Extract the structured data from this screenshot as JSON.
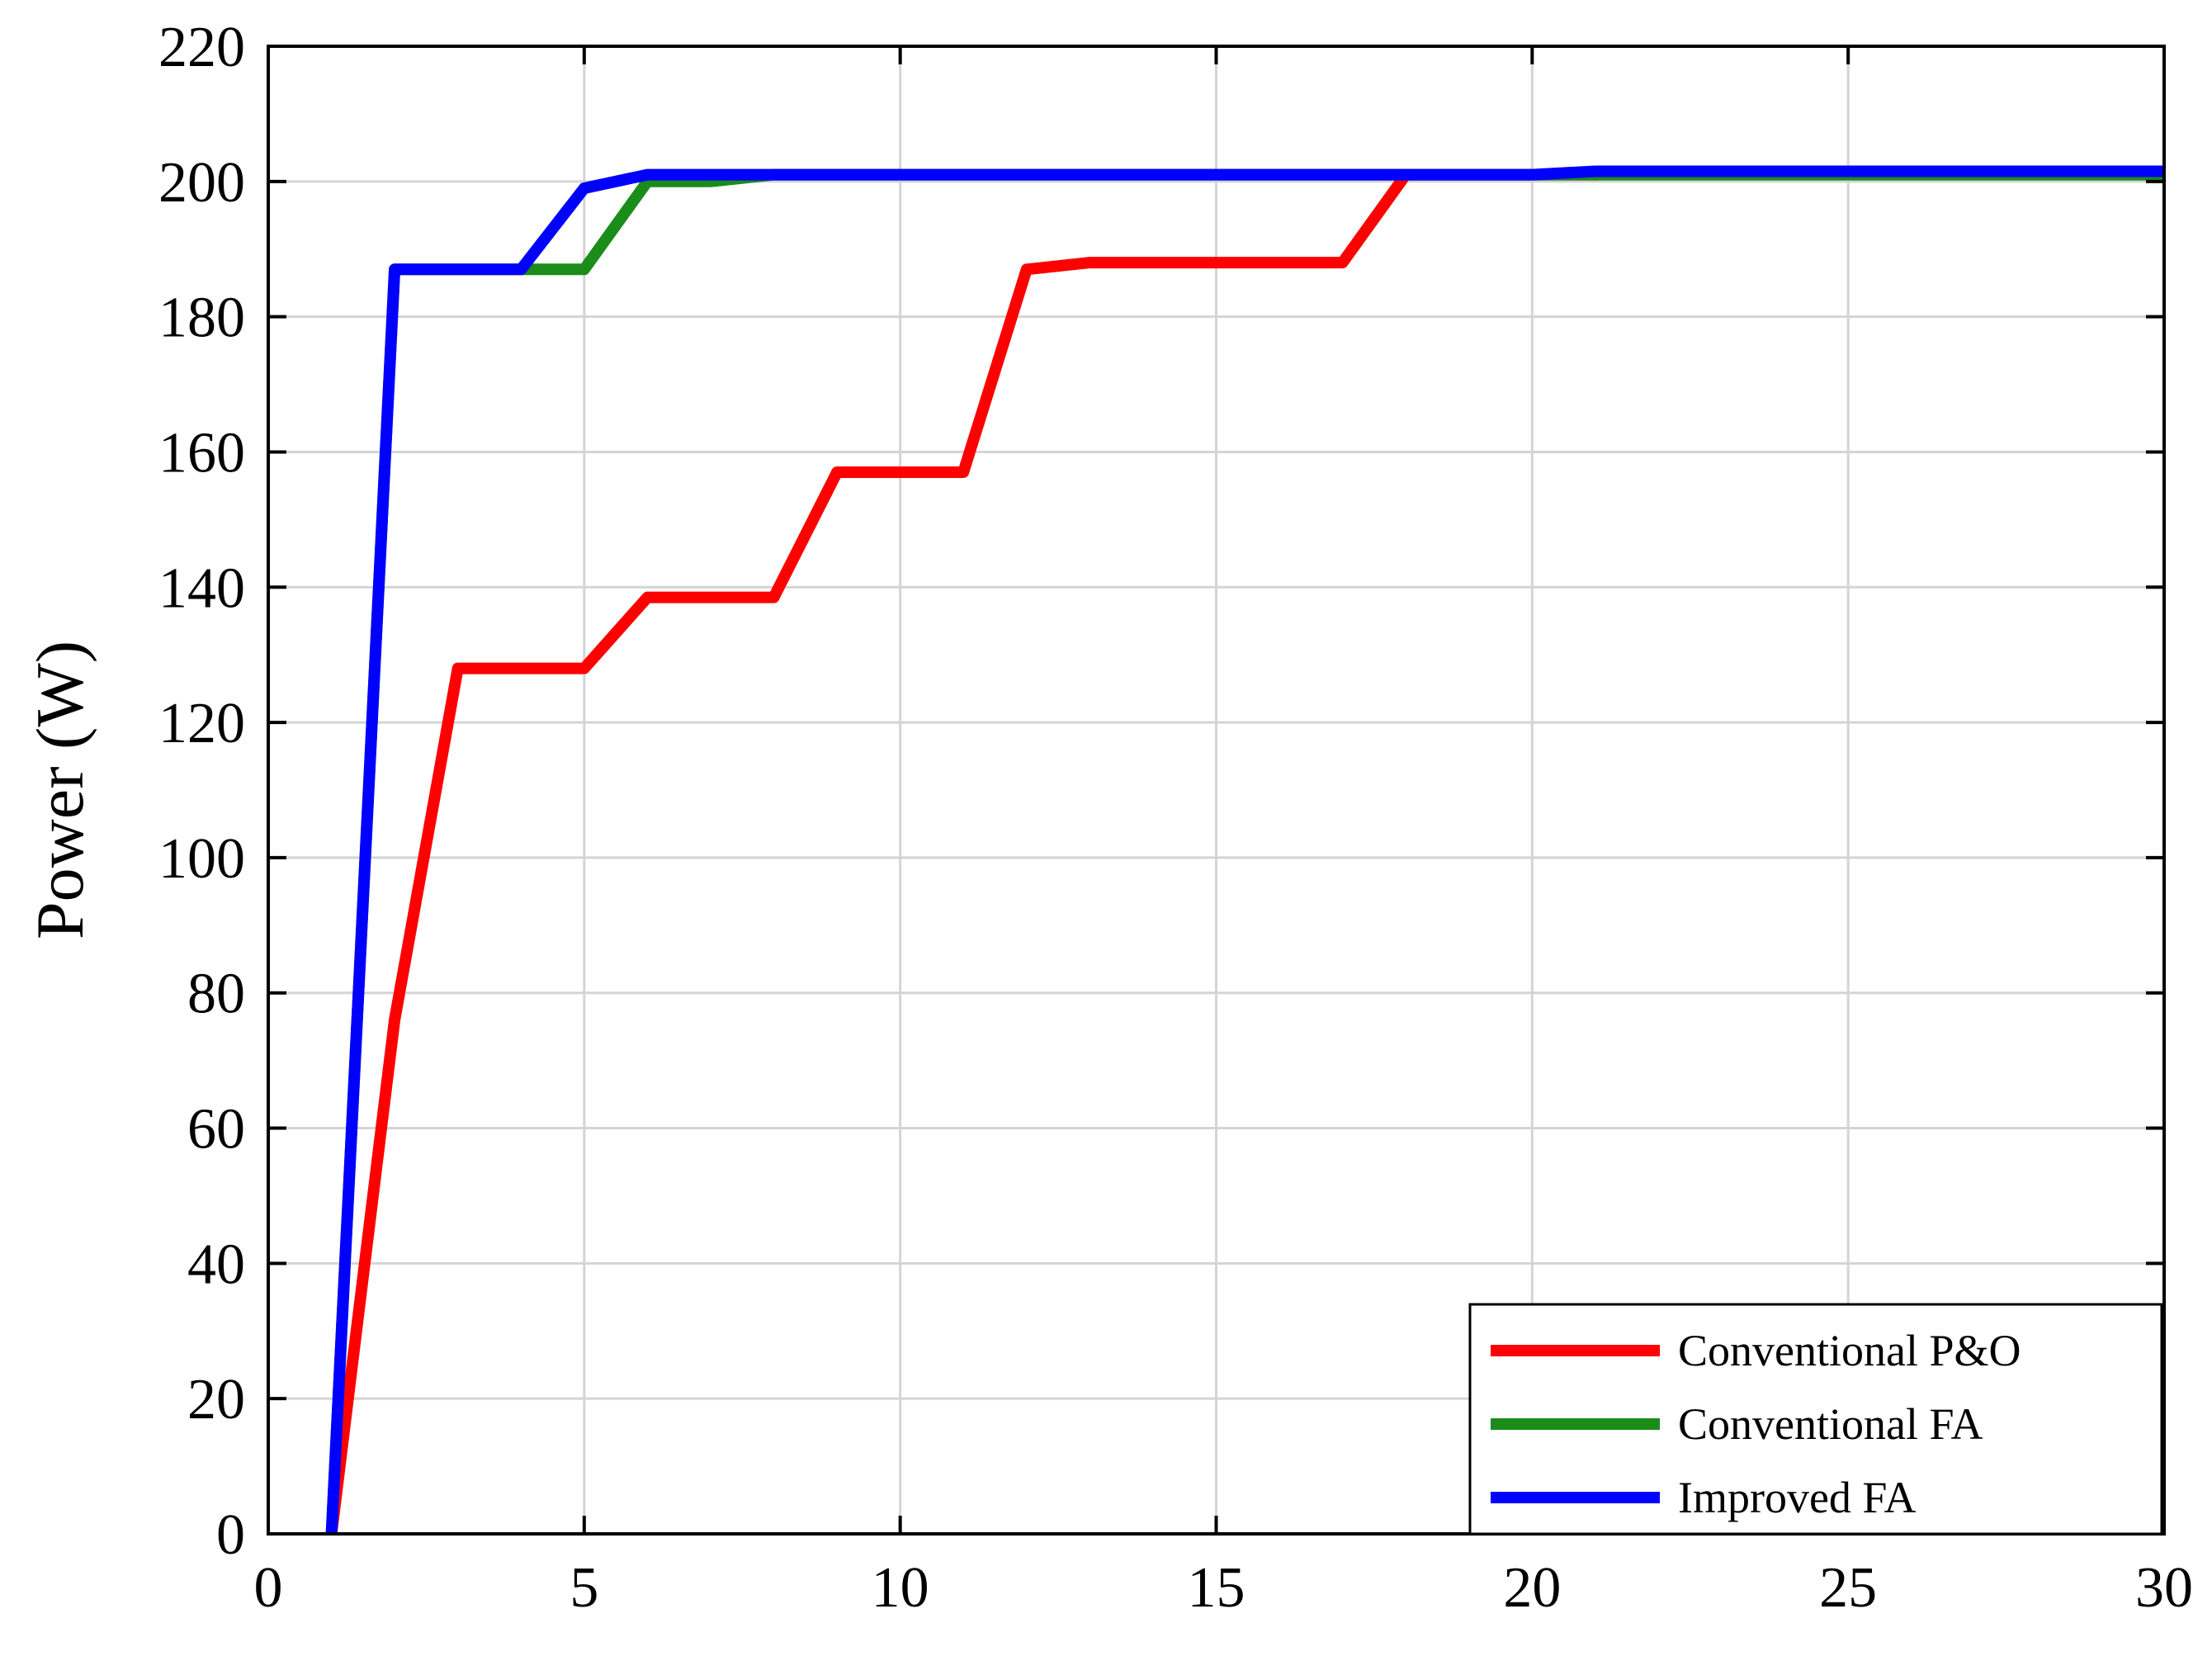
{
  "chart_data": {
    "type": "line",
    "title": "",
    "xlabel": "",
    "ylabel": "Power (W)",
    "xlim": [
      0,
      30
    ],
    "ylim": [
      0,
      220
    ],
    "xticks": [
      0,
      5,
      10,
      15,
      20,
      25,
      30
    ],
    "yticks": [
      0,
      20,
      40,
      60,
      80,
      100,
      120,
      140,
      160,
      180,
      200,
      220
    ],
    "grid": true,
    "legend_position": "bottom-right",
    "series": [
      {
        "name": "Conventional P&O",
        "color": "#ff0000",
        "x": [
          1,
          2,
          3,
          4,
          5,
          6,
          7,
          8,
          9,
          10,
          11,
          12,
          13,
          14,
          15,
          16,
          17,
          18,
          19,
          20,
          21,
          22,
          23,
          24,
          25,
          26,
          27,
          28,
          29,
          30
        ],
        "y": [
          0,
          76,
          128,
          128,
          128,
          138.5,
          138.5,
          138.5,
          157,
          157,
          157,
          187,
          188,
          188,
          188,
          188,
          188,
          201,
          201,
          201,
          201,
          201.5,
          201.5,
          201.5,
          201.5,
          201.5,
          201.5,
          201.5,
          201.5,
          201.5
        ]
      },
      {
        "name": "Conventional FA",
        "color": "#1a8c1a",
        "x": [
          1,
          2,
          3,
          4,
          5,
          6,
          7,
          8,
          9,
          10,
          11,
          12,
          13,
          14,
          15,
          16,
          17,
          18,
          19,
          20,
          21,
          22,
          23,
          24,
          25,
          26,
          27,
          28,
          29,
          30
        ],
        "y": [
          0,
          187,
          187,
          187,
          187,
          200,
          200,
          201,
          201,
          201,
          201,
          201,
          201,
          201,
          201,
          201,
          201,
          201,
          201,
          201,
          201,
          201,
          201,
          201,
          201,
          201,
          201,
          201,
          201,
          201
        ]
      },
      {
        "name": "Improved FA",
        "color": "#0000ff",
        "x": [
          1,
          2,
          3,
          4,
          5,
          6,
          7,
          8,
          9,
          10,
          11,
          12,
          13,
          14,
          15,
          16,
          17,
          18,
          19,
          20,
          21,
          22,
          23,
          24,
          25,
          26,
          27,
          28,
          29,
          30
        ],
        "y": [
          0,
          187,
          187,
          187,
          199,
          201,
          201,
          201,
          201,
          201,
          201,
          201,
          201,
          201,
          201,
          201,
          201,
          201,
          201,
          201,
          201.5,
          201.5,
          201.5,
          201.5,
          201.5,
          201.5,
          201.5,
          201.5,
          201.5,
          201.5
        ]
      }
    ]
  }
}
